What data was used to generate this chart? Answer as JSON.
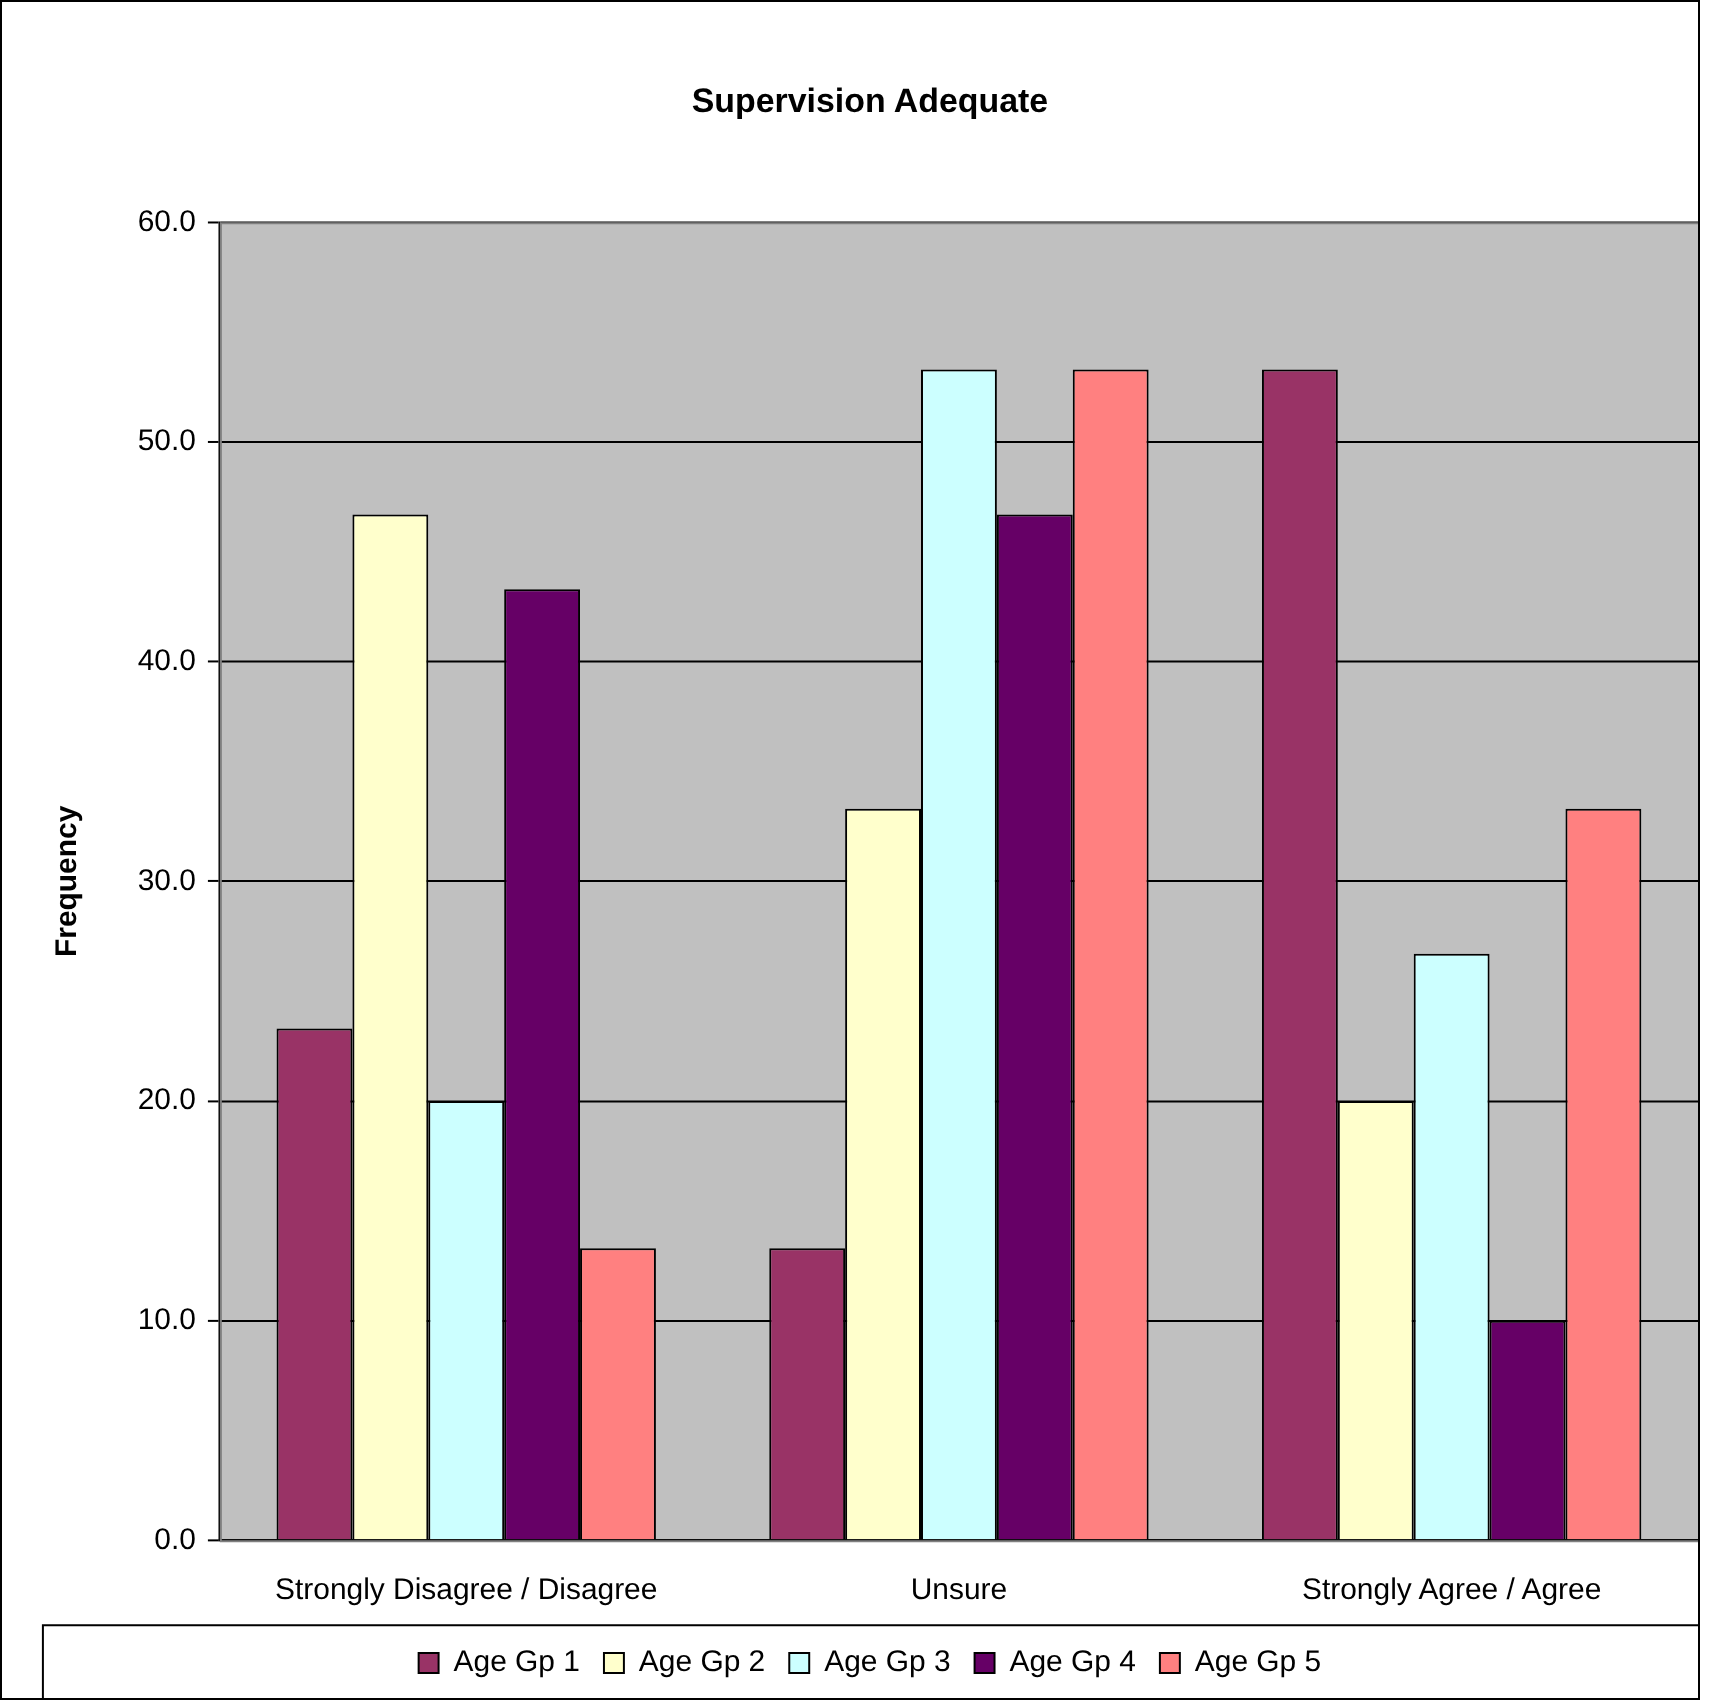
{
  "chart_data": {
    "type": "bar",
    "title": "Supervision Adequate",
    "ylabel": "Frequency",
    "categories": [
      "Strongly Disagree / Disagree",
      "Unsure",
      "Strongly Agree / Agree"
    ],
    "series": [
      {
        "name": "Age Gp 1",
        "color": "#993366",
        "values": [
          23.3,
          13.3,
          53.3
        ]
      },
      {
        "name": "Age Gp 2",
        "color": "#ffffcc",
        "values": [
          46.7,
          33.3,
          20.0
        ]
      },
      {
        "name": "Age Gp 3",
        "color": "#ccffff",
        "values": [
          20.0,
          53.3,
          26.7
        ]
      },
      {
        "name": "Age Gp 4",
        "color": "#660066",
        "values": [
          43.3,
          46.7,
          10.0
        ]
      },
      {
        "name": "Age Gp 5",
        "color": "#ff8080",
        "values": [
          13.3,
          53.3,
          33.3
        ]
      }
    ],
    "ylim": [
      0,
      60
    ],
    "yticks": [
      {
        "value": 0,
        "label": "0.0"
      },
      {
        "value": 10,
        "label": "10.0"
      },
      {
        "value": 20,
        "label": "20.0"
      },
      {
        "value": 30,
        "label": "30.0"
      },
      {
        "value": 40,
        "label": "40.0"
      },
      {
        "value": 50,
        "label": "50.0"
      },
      {
        "value": 60,
        "label": "60.0"
      }
    ],
    "grid": "y",
    "legend": "bottom"
  }
}
